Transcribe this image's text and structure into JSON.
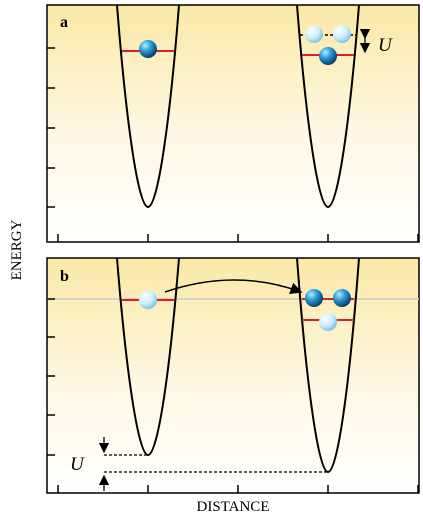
{
  "panel_a": {
    "label": "a",
    "energy_label": "U"
  },
  "panel_b": {
    "label": "b",
    "energy_label": "U"
  },
  "axes": {
    "y_label": "ENERGY",
    "x_label": "DISTANCE"
  }
}
